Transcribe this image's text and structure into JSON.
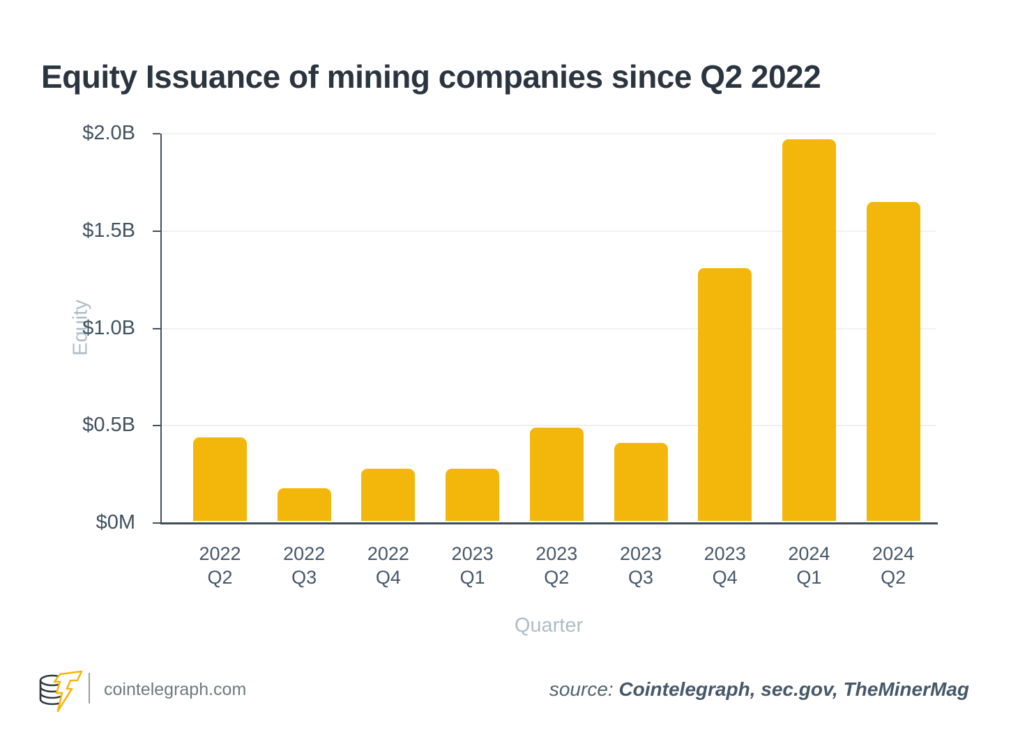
{
  "title": "Equity Issuance of mining companies since Q2 2022",
  "chart_data": {
    "type": "bar",
    "title": "Equity Issuance of mining companies since Q2 2022",
    "categories": [
      "2022 Q2",
      "2022 Q3",
      "2022 Q4",
      "2023 Q1",
      "2023 Q2",
      "2023 Q3",
      "2023 Q4",
      "2024 Q1",
      "2024 Q2"
    ],
    "values": [
      0.43,
      0.17,
      0.27,
      0.27,
      0.48,
      0.4,
      1.3,
      1.96,
      1.64
    ],
    "values_unit": "USD billions",
    "xlabel": "Quarter",
    "ylabel": "Equity",
    "ylim": [
      0,
      2.0
    ],
    "yticks": [
      {
        "value": 2.0,
        "label": "$2.0B"
      },
      {
        "value": 1.5,
        "label": "$1.5B"
      },
      {
        "value": 1.0,
        "label": "$1.0B"
      },
      {
        "value": 0.5,
        "label": "$0.5B"
      },
      {
        "value": 0.0,
        "label": "$0M"
      }
    ],
    "grid": true,
    "legend": false,
    "bar_color": "#F3B70B"
  },
  "footer": {
    "logo": "cointelegraph-coin-bolt-logo",
    "site": "cointelegraph.com",
    "source_prefix": "source:",
    "source_names": "Cointelegraph, sec.gov, TheMinerMag"
  },
  "colors": {
    "background": "#FFFFFF",
    "title_text": "#2B3540",
    "bar": "#F3B70B",
    "axis_line": "#41505F",
    "tick_label": "#3F5160",
    "x_tick_label": "#44576A",
    "muted_axis_title": "#AFBDC7",
    "gridline": "#F0F0F2",
    "footer_text": "#6E7980",
    "source_text": "#45586A"
  }
}
